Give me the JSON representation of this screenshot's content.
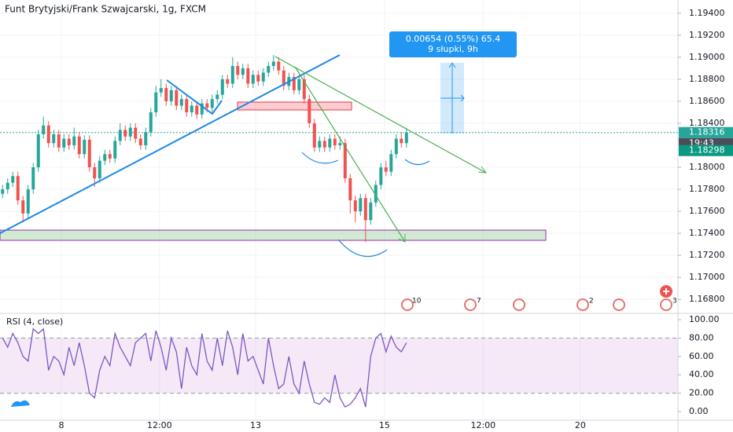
{
  "chart_data": [
    {
      "type": "candlestick",
      "title": "Funt Brytyjski/Frank Szwajcarski, 1g, FXCM",
      "up_color": "#26a69a",
      "down_color": "#ef5350",
      "open": [
        1.1776,
        1.178,
        1.1786,
        1.1792,
        1.177,
        1.1758,
        1.178,
        1.18,
        1.183,
        1.1838,
        1.1822,
        1.183,
        1.1818,
        1.1826,
        1.182,
        1.1828,
        1.1812,
        1.1825,
        1.18,
        1.179,
        1.1806,
        1.1812,
        1.1808,
        1.1824,
        1.1834,
        1.1828,
        1.1836,
        1.1826,
        1.182,
        1.1832,
        1.185,
        1.1868,
        1.1872,
        1.186,
        1.187,
        1.1856,
        1.1862,
        1.185,
        1.1856,
        1.1848,
        1.1858,
        1.1854,
        1.1862,
        1.1866,
        1.188,
        1.1876,
        1.1892,
        1.1884,
        1.189,
        1.1876,
        1.1884,
        1.1878,
        1.1886,
        1.1892,
        1.1896,
        1.1888,
        1.1874,
        1.1882,
        1.187,
        1.188,
        1.1862,
        1.184,
        1.1818,
        1.1824,
        1.1818,
        1.1826,
        1.182,
        1.1822,
        1.179,
        1.177,
        1.176,
        1.1772,
        1.1752,
        1.1768,
        1.1784,
        1.18,
        1.1796,
        1.1812,
        1.1826,
        1.1822
      ],
      "high": [
        1.1784,
        1.179,
        1.1796,
        1.1796,
        1.1774,
        1.1784,
        1.1804,
        1.1834,
        1.1846,
        1.1842,
        1.1834,
        1.1834,
        1.183,
        1.183,
        1.1836,
        1.1832,
        1.1829,
        1.1829,
        1.1804,
        1.181,
        1.1816,
        1.1816,
        1.1828,
        1.184,
        1.1838,
        1.184,
        1.184,
        1.183,
        1.1836,
        1.1854,
        1.1874,
        1.188,
        1.1876,
        1.1874,
        1.1874,
        1.1866,
        1.1866,
        1.186,
        1.186,
        1.1862,
        1.1862,
        1.1866,
        1.187,
        1.1884,
        1.1884,
        1.19,
        1.1896,
        1.1894,
        1.1894,
        1.1888,
        1.1888,
        1.189,
        1.1896,
        1.1902,
        1.19,
        1.1892,
        1.1886,
        1.1886,
        1.1884,
        1.1884,
        1.1866,
        1.1844,
        1.1828,
        1.1828,
        1.183,
        1.183,
        1.1828,
        1.1826,
        1.1794,
        1.1774,
        1.1776,
        1.1776,
        1.1772,
        1.1788,
        1.1804,
        1.1806,
        1.1816,
        1.183,
        1.1832,
        1.1836
      ],
      "low": [
        1.1772,
        1.1776,
        1.1782,
        1.1766,
        1.175,
        1.1754,
        1.1776,
        1.1796,
        1.1826,
        1.1818,
        1.1818,
        1.1814,
        1.1814,
        1.1816,
        1.1816,
        1.1808,
        1.1808,
        1.1796,
        1.1782,
        1.1786,
        1.1802,
        1.1804,
        1.1804,
        1.182,
        1.1824,
        1.1824,
        1.1822,
        1.1816,
        1.1816,
        1.1828,
        1.1846,
        1.1864,
        1.1856,
        1.1856,
        1.1852,
        1.1852,
        1.1846,
        1.1846,
        1.1844,
        1.1844,
        1.185,
        1.185,
        1.1858,
        1.1862,
        1.1872,
        1.1872,
        1.188,
        1.188,
        1.1872,
        1.1872,
        1.1874,
        1.1874,
        1.1882,
        1.1888,
        1.1884,
        1.187,
        1.187,
        1.1866,
        1.1866,
        1.1858,
        1.1836,
        1.1814,
        1.1814,
        1.1814,
        1.1814,
        1.1816,
        1.1816,
        1.1786,
        1.1758,
        1.175,
        1.1756,
        1.1732,
        1.1748,
        1.1764,
        1.178,
        1.1792,
        1.1792,
        1.1808,
        1.1818,
        1.1818
      ],
      "close": [
        1.178,
        1.1786,
        1.1792,
        1.177,
        1.1758,
        1.178,
        1.18,
        1.183,
        1.1838,
        1.1822,
        1.183,
        1.1818,
        1.1826,
        1.182,
        1.1828,
        1.1812,
        1.1825,
        1.18,
        1.179,
        1.1806,
        1.1812,
        1.1808,
        1.1824,
        1.1834,
        1.1828,
        1.1836,
        1.1826,
        1.182,
        1.1832,
        1.185,
        1.1868,
        1.1872,
        1.186,
        1.187,
        1.1856,
        1.1862,
        1.185,
        1.1856,
        1.1848,
        1.1858,
        1.1854,
        1.1862,
        1.1866,
        1.188,
        1.1876,
        1.1892,
        1.1884,
        1.189,
        1.1876,
        1.1884,
        1.1878,
        1.1886,
        1.1892,
        1.1896,
        1.1888,
        1.1874,
        1.1882,
        1.187,
        1.188,
        1.1862,
        1.184,
        1.1818,
        1.1824,
        1.1818,
        1.1826,
        1.182,
        1.1822,
        1.179,
        1.177,
        1.176,
        1.1772,
        1.1752,
        1.1768,
        1.1784,
        1.18,
        1.1796,
        1.1812,
        1.1826,
        1.1822,
        1.18316
      ],
      "xlim": [
        -0.5,
        132.1
      ],
      "xticks": [
        {
          "value": 11.5,
          "label": "8"
        },
        {
          "value": 30.7,
          "label": "12:00"
        },
        {
          "value": 49.5,
          "label": "13"
        },
        {
          "value": 74.7,
          "label": "15"
        },
        {
          "value": 94,
          "label": "12:00"
        },
        {
          "value": 113,
          "label": "20"
        }
      ],
      "ylim": [
        1.1668,
        1.1952
      ],
      "yticks": [
        {
          "value": 1.194,
          "label": "1.19400"
        },
        {
          "value": 1.192,
          "label": "1.19200"
        },
        {
          "value": 1.19,
          "label": "1.19000"
        },
        {
          "value": 1.188,
          "label": "1.18800"
        },
        {
          "value": 1.186,
          "label": "1.18600"
        },
        {
          "value": 1.184,
          "label": "1.18400"
        },
        {
          "value": 1.18,
          "label": "1.18000"
        },
        {
          "value": 1.178,
          "label": "1.17800"
        },
        {
          "value": 1.176,
          "label": "1.17600"
        },
        {
          "value": 1.174,
          "label": "1.17400"
        },
        {
          "value": 1.172,
          "label": "1.17200"
        },
        {
          "value": 1.17,
          "label": "1.17000"
        },
        {
          "value": 1.168,
          "label": "1.16800"
        }
      ],
      "last_price": 1.18316,
      "countdown": "19:43",
      "second_price": 1.18298,
      "measure": [
        "0.00654 (0.55%) 65.4",
        "9 słupki, 9h"
      ],
      "events": [
        "10",
        "7",
        "2",
        "3"
      ]
    },
    {
      "type": "line",
      "title": "RSI (4, close)",
      "color": "#7e57c2",
      "values": [
        80,
        70,
        85,
        75,
        60,
        55,
        90,
        85,
        90,
        45,
        60,
        55,
        40,
        70,
        50,
        75,
        50,
        20,
        15,
        45,
        60,
        50,
        85,
        70,
        60,
        50,
        75,
        80,
        85,
        55,
        88,
        70,
        45,
        80,
        65,
        25,
        70,
        50,
        40,
        85,
        55,
        45,
        80,
        50,
        88,
        70,
        40,
        85,
        55,
        60,
        45,
        30,
        80,
        50,
        25,
        30,
        60,
        30,
        20,
        55,
        30,
        10,
        8,
        15,
        10,
        40,
        15,
        5,
        8,
        15,
        25,
        5,
        60,
        80,
        85,
        65,
        82,
        70,
        65,
        75
      ],
      "ylim": [
        -9.4,
        106
      ],
      "yticks": [
        {
          "value": 100,
          "label": "100.00"
        },
        {
          "value": 80,
          "label": "80.00"
        },
        {
          "value": 60,
          "label": "60.00"
        },
        {
          "value": 40,
          "label": "40.00"
        },
        {
          "value": 20,
          "label": "20.00"
        },
        {
          "value": 0,
          "label": "0.00"
        }
      ],
      "band": [
        20,
        80
      ]
    }
  ]
}
